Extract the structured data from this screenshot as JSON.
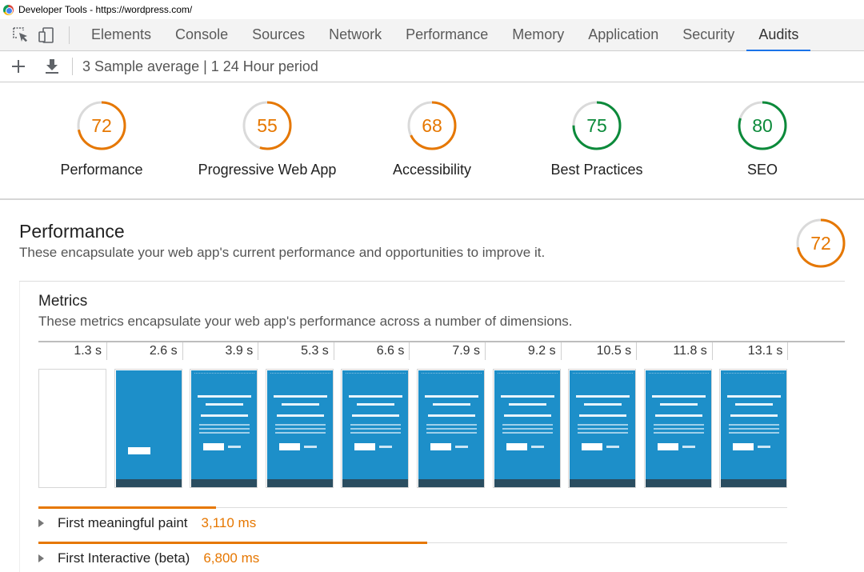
{
  "window": {
    "title": "Developer Tools - https://wordpress.com/"
  },
  "tabs": [
    {
      "label": "Elements"
    },
    {
      "label": "Console"
    },
    {
      "label": "Sources"
    },
    {
      "label": "Network"
    },
    {
      "label": "Performance"
    },
    {
      "label": "Memory"
    },
    {
      "label": "Application"
    },
    {
      "label": "Security"
    },
    {
      "label": "Audits",
      "active": true
    }
  ],
  "toolbar": {
    "report_label": "3 Sample average | 1 24 Hour period"
  },
  "colors": {
    "orange": "#e67700",
    "green": "#0b8a3a",
    "track": "#dadada",
    "tab_active": "#1a73e8"
  },
  "categories": [
    {
      "label": "Performance",
      "score": "72",
      "score_value": 72,
      "status": "average"
    },
    {
      "label": "Progressive Web App",
      "score": "55",
      "score_value": 55,
      "status": "average"
    },
    {
      "label": "Accessibility",
      "score": "68",
      "score_value": 68,
      "status": "average"
    },
    {
      "label": "Best Practices",
      "score": "75",
      "score_value": 75,
      "status": "pass"
    },
    {
      "label": "SEO",
      "score": "80",
      "score_value": 80,
      "status": "pass"
    }
  ],
  "performance": {
    "title": "Performance",
    "description": "These encapsulate your web app's current performance and opportunities to improve it.",
    "score": "72",
    "score_value": 72,
    "metrics_title": "Metrics",
    "metrics_description": "These metrics encapsulate your web app's performance across a number of dimensions.",
    "filmstrip_times": [
      "1.3 s",
      "2.6 s",
      "3.9 s",
      "5.3 s",
      "6.6 s",
      "7.9 s",
      "9.2 s",
      "10.5 s",
      "11.8 s",
      "13.1 s"
    ],
    "metrics": [
      {
        "name": "First meaningful paint",
        "value": "3,110 ms",
        "bar_fraction": 0.237
      },
      {
        "name": "First Interactive (beta)",
        "value": "6,800 ms",
        "bar_fraction": 0.519
      }
    ]
  }
}
